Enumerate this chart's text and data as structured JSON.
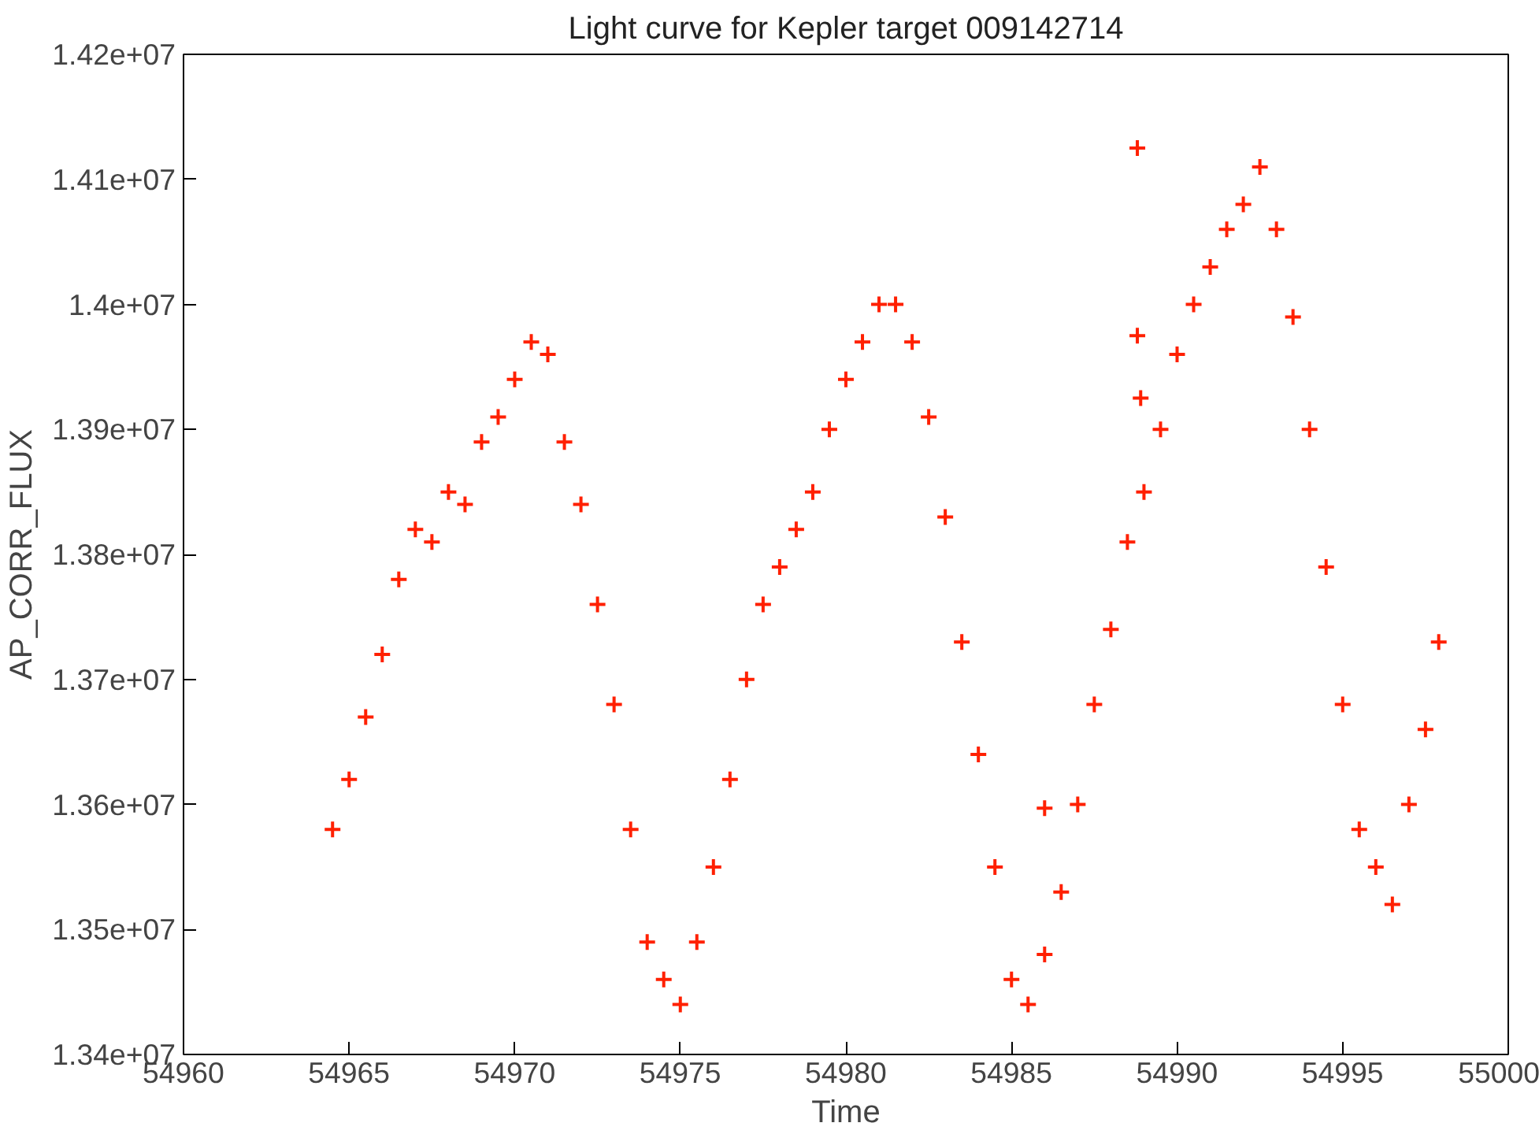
{
  "chart_data": {
    "type": "scatter",
    "title": "Light curve for Kepler target 009142714",
    "xlabel": "Time",
    "ylabel": "AP_CORR_FLUX",
    "x": [
      54964.5,
      54965,
      54965.5,
      54966,
      54966.5,
      54967,
      54967.5,
      54968,
      54968.5,
      54969,
      54969.5,
      54970,
      54970.5,
      54971,
      54971.5,
      54972,
      54972.5,
      54973,
      54973.5,
      54974,
      54974.5,
      54975,
      54975.5,
      54976,
      54976.5,
      54977,
      54977.5,
      54978,
      54978.5,
      54979,
      54979.5,
      54980,
      54980.5,
      54981,
      54981.5,
      54982,
      54982.5,
      54983,
      54983.5,
      54984,
      54984.5,
      54985,
      54985.5,
      54986,
      54986.5,
      54987,
      54987.5,
      54988,
      54988.5,
      54989,
      54989.5,
      54990,
      54990.5,
      54991,
      54991.5,
      54992,
      54992.5,
      54993,
      54993.5,
      54994,
      54994.5,
      54995,
      54995.5,
      54996,
      54996.5,
      54997,
      54997.5,
      54997.9,
      54988.8,
      54988.8,
      54988.9,
      54986
    ],
    "series": [
      {
        "color": "#ff2000",
        "values": [
          13580000,
          13620000,
          13670000,
          13720000,
          13780000,
          13820000,
          13810000,
          13850000,
          13840000,
          13890000,
          13910000,
          13940000,
          13970000,
          13960000,
          13890000,
          13840000,
          13760000,
          13680000,
          13580000,
          13490000,
          13460000,
          13440000,
          13490000,
          13550000,
          13620000,
          13700000,
          13760000,
          13790000,
          13820000,
          13850000,
          13900000,
          13940000,
          13970000,
          14000000,
          14000000,
          13970000,
          13910000,
          13830000,
          13730000,
          13640000,
          13550000,
          13460000,
          13440000,
          13480000,
          13530000,
          13600000,
          13680000,
          13740000,
          13810000,
          13850000,
          13900000,
          13960000,
          14000000,
          14030000,
          14060000,
          14080000,
          14110000,
          14060000,
          13990000,
          13900000,
          13790000,
          13680000,
          13580000,
          13550000,
          13520000,
          13600000,
          13660000,
          13730000,
          14125000,
          13975000,
          13925000,
          13597000
        ]
      }
    ],
    "marker": "cross",
    "grid": false,
    "xlim": [
      54960,
      55000
    ],
    "xticks": [
      54960,
      54965,
      54970,
      54975,
      54980,
      54985,
      54990,
      54995,
      55000
    ],
    "ylim": [
      13400000,
      14200000
    ],
    "yticks": [
      {
        "value": 13400000,
        "label": "1.34e+07"
      },
      {
        "value": 13500000,
        "label": "1.35e+07"
      },
      {
        "value": 13600000,
        "label": "1.36e+07"
      },
      {
        "value": 13700000,
        "label": "1.37e+07"
      },
      {
        "value": 13800000,
        "label": "1.38e+07"
      },
      {
        "value": 13900000,
        "label": "1.39e+07"
      },
      {
        "value": 14000000,
        "label": "1.4e+07"
      },
      {
        "value": 14100000,
        "label": "1.41e+07"
      },
      {
        "value": 14200000,
        "label": "1.42e+07"
      }
    ]
  }
}
